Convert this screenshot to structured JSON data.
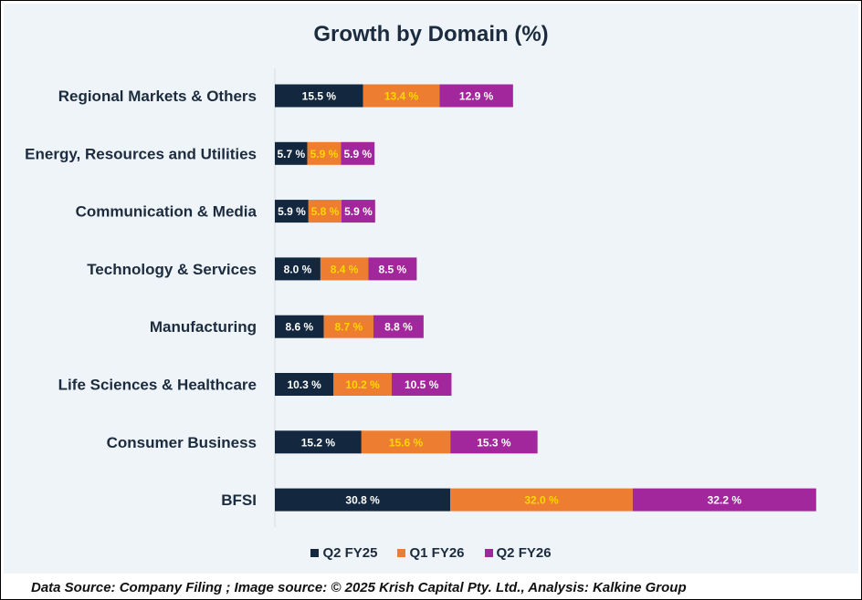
{
  "chart_data": {
    "type": "bar",
    "orientation": "horizontal",
    "stacked": true,
    "title": "Growth by Domain (%)",
    "categories": [
      "Regional Markets & Others",
      "Energy, Resources and Utilities",
      "Communication & Media",
      "Technology & Services",
      "Manufacturing",
      "Life Sciences & Healthcare",
      "Consumer Business",
      "BFSI"
    ],
    "series": [
      {
        "name": "Q2 FY25",
        "color": "#13283f",
        "label_color": "#ffffff",
        "values": [
          15.5,
          5.7,
          5.9,
          8.0,
          8.6,
          10.3,
          15.2,
          30.8
        ]
      },
      {
        "name": "Q1 FY26",
        "color": "#ed7d31",
        "label_color": "#ffd700",
        "values": [
          13.4,
          5.9,
          5.8,
          8.4,
          8.7,
          10.2,
          15.6,
          32.0
        ]
      },
      {
        "name": "Q2 FY26",
        "color": "#a2279c",
        "label_color": "#ffffff",
        "values": [
          12.9,
          5.9,
          5.9,
          8.5,
          8.8,
          10.5,
          15.3,
          32.2
        ]
      }
    ],
    "label_suffix": " %",
    "xlabel": "",
    "ylabel": "",
    "legend_position": "bottom",
    "grid": false
  },
  "footer": "Data Source: Company Filing ; Image source: © 2025 Krish Capital Pty. Ltd., Analysis: Kalkine Group"
}
